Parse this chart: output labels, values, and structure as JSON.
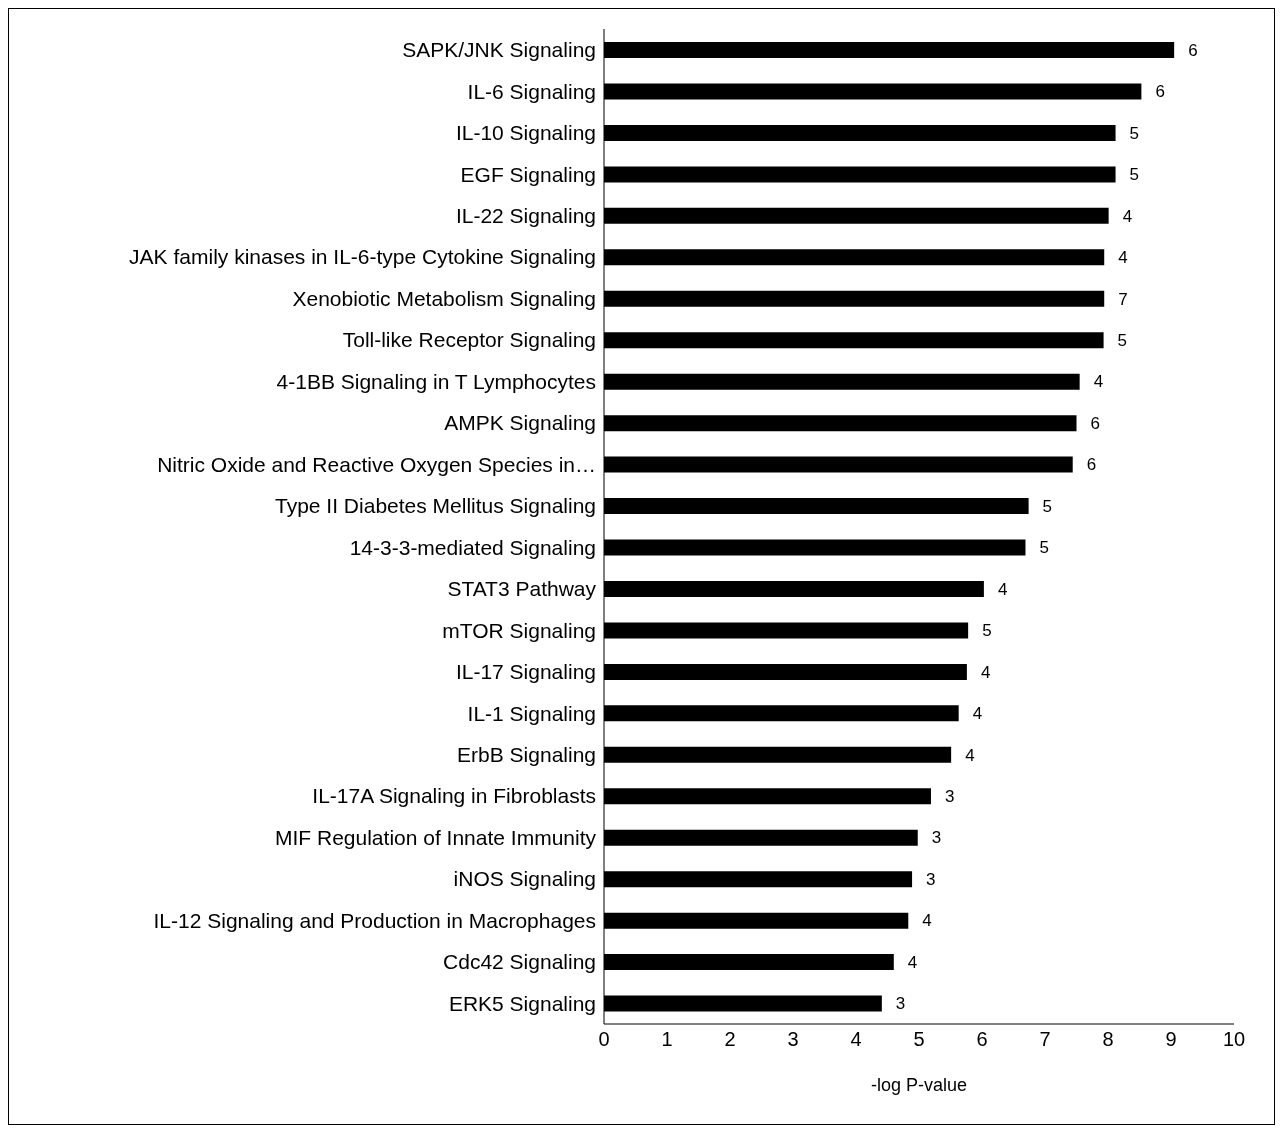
{
  "chart_data": {
    "type": "bar",
    "orientation": "horizontal",
    "xlabel": "-log P-value",
    "categories": [
      "SAPK/JNK Signaling",
      "IL-6 Signaling",
      "IL-10 Signaling",
      "EGF Signaling",
      "IL-22 Signaling",
      "JAK family kinases in IL-6-type Cytokine Signaling",
      "Xenobiotic Metabolism Signaling",
      "Toll-like Receptor Signaling",
      "4-1BB Signaling in T Lymphocytes",
      "AMPK Signaling",
      "Nitric Oxide and Reactive Oxygen Species in…",
      "Type II Diabetes Mellitus Signaling",
      "14-3-3-mediated Signaling",
      "STAT3 Pathway",
      "mTOR Signaling",
      "IL-17 Signaling",
      "IL-1 Signaling",
      "ErbB Signaling",
      "IL-17A Signaling in Fibroblasts",
      "MIF Regulation of Innate Immunity",
      "iNOS Signaling",
      "IL-12 Signaling and Production in Macrophages",
      "Cdc42 Signaling",
      "ERK5 Signaling"
    ],
    "values": [
      9.05,
      8.53,
      8.12,
      8.12,
      8.01,
      7.94,
      7.94,
      7.93,
      7.55,
      7.5,
      7.44,
      6.74,
      6.69,
      6.03,
      5.78,
      5.76,
      5.63,
      5.51,
      5.19,
      4.98,
      4.89,
      4.83,
      4.6,
      4.41
    ],
    "annotations": [
      {
        "text": "6",
        "x": 9.05,
        "y": "SAPK/JNK Signaling"
      },
      {
        "text": "6",
        "x": 8.53,
        "y": "IL-6 Signaling"
      },
      {
        "text": "5",
        "x": 8.12,
        "y": "IL-10 Signaling"
      },
      {
        "text": "5",
        "x": 8.12,
        "y": "EGF Signaling"
      },
      {
        "text": "4",
        "x": 8.01,
        "y": "IL-22 Signaling"
      },
      {
        "text": "4",
        "x": 7.94,
        "y": "JAK family kinases in IL-6-type Cytokine Signaling"
      },
      {
        "text": "7",
        "x": 7.94,
        "y": "Xenobiotic Metabolism Signaling"
      },
      {
        "text": "5",
        "x": 7.93,
        "y": "Toll-like Receptor Signaling"
      },
      {
        "text": "4",
        "x": 7.55,
        "y": "4-1BB Signaling in T Lymphocytes"
      },
      {
        "text": "6",
        "x": 7.5,
        "y": "AMPK Signaling"
      },
      {
        "text": "6",
        "x": 7.44,
        "y": "Nitric Oxide and Reactive Oxygen Species in…"
      },
      {
        "text": "5",
        "x": 6.74,
        "y": "Type II Diabetes Mellitus Signaling"
      },
      {
        "text": "5",
        "x": 6.69,
        "y": "14-3-3-mediated Signaling"
      },
      {
        "text": "4",
        "x": 6.03,
        "y": "STAT3 Pathway"
      },
      {
        "text": "5",
        "x": 5.78,
        "y": "mTOR Signaling"
      },
      {
        "text": "4",
        "x": 5.76,
        "y": "IL-17 Signaling"
      },
      {
        "text": "4",
        "x": 5.63,
        "y": "IL-1 Signaling"
      },
      {
        "text": "4",
        "x": 5.51,
        "y": "ErbB Signaling"
      },
      {
        "text": "3",
        "x": 5.19,
        "y": "IL-17A Signaling in Fibroblasts"
      },
      {
        "text": "3",
        "x": 4.98,
        "y": "MIF Regulation of Innate Immunity"
      },
      {
        "text": "3",
        "x": 4.89,
        "y": "iNOS Signaling"
      },
      {
        "text": "4",
        "x": 4.83,
        "y": "IL-12 Signaling and Production in Macrophages"
      },
      {
        "text": "4",
        "x": 4.6,
        "y": "Cdc42 Signaling"
      },
      {
        "text": "3",
        "x": 4.41,
        "y": "ERK5 Signaling"
      }
    ],
    "color": "#000000",
    "xlim": [
      0,
      10
    ],
    "xticks": [
      0,
      1,
      2,
      3,
      4,
      5,
      6,
      7,
      8,
      9,
      10
    ],
    "grid": false
  }
}
